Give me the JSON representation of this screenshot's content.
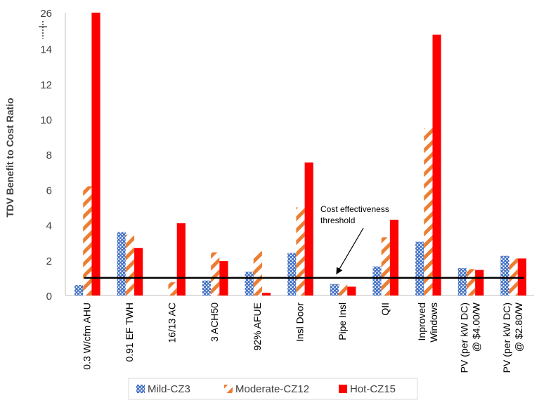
{
  "chart_data": {
    "type": "bar",
    "ylabel": "TDV Benefit to Cost Ratio",
    "ylim": [
      0,
      16
    ],
    "yticks": [
      "0",
      "2",
      "4",
      "6",
      "8",
      "10",
      "12",
      "14",
      "26"
    ],
    "axis_break": true,
    "grid": false,
    "legend_position": "bottom",
    "categories": [
      [
        "0.3 W/cfm AHU"
      ],
      [
        "0.91 EF TWH"
      ],
      [
        "16/13 AC"
      ],
      [
        "3 ACH50"
      ],
      [
        "92% AFUE"
      ],
      [
        "Insl Door"
      ],
      [
        "Pipe Insl"
      ],
      [
        "QII"
      ],
      [
        "Inproved",
        "Windows"
      ],
      [
        "PV (per kW DC)",
        "@ $4.00/W"
      ],
      [
        "PV (per kW DC)",
        "@ $2.80/W"
      ]
    ],
    "series": [
      {
        "name": "Mild-CZ3",
        "color": "#4472C4",
        "pattern": "dots",
        "values": [
          0.6,
          3.6,
          0,
          0.85,
          1.35,
          2.42,
          0.65,
          1.65,
          3.05,
          1.55,
          2.25
        ]
      },
      {
        "name": "Moderate-CZ12",
        "color": "#ED7D31",
        "pattern": "diagonal-stripes",
        "values": [
          6.2,
          3.45,
          0.75,
          2.45,
          2.5,
          5.0,
          0.62,
          3.3,
          9.5,
          1.5,
          2.1
        ]
      },
      {
        "name": "Hot-CZ15",
        "color": "#FF0000",
        "pattern": "solid",
        "values": [
          26,
          2.7,
          4.1,
          1.95,
          0.15,
          7.55,
          0.5,
          4.3,
          14.8,
          1.45,
          2.1
        ]
      }
    ],
    "reference_line": {
      "value": 1,
      "color": "#000000"
    },
    "annotation": {
      "text": [
        "Cost effectiveness",
        "threshold"
      ]
    }
  }
}
